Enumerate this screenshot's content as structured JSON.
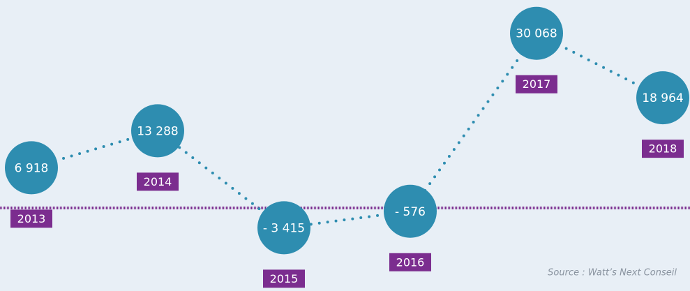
{
  "chart_data": {
    "type": "line",
    "categories": [
      "2013",
      "2014",
      "2015",
      "2016",
      "2017",
      "2018"
    ],
    "values": [
      6918,
      13288,
      -3415,
      -576,
      30068,
      18964
    ],
    "value_labels": [
      "6 918",
      "13 288",
      "- 3 415",
      "- 576",
      "30 068",
      "18 964"
    ],
    "color": "#2e8db0",
    "label_color": "#7b2d8f",
    "ylim": [
      -14300,
      35800
    ],
    "annotation": "Source : Watt’s Next Conseil"
  }
}
